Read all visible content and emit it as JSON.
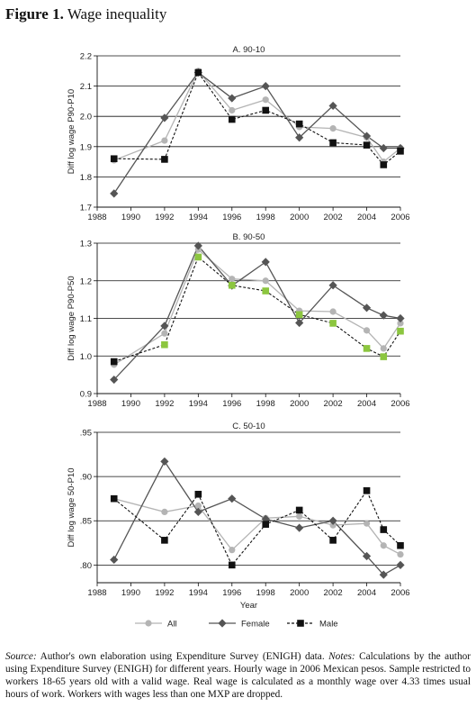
{
  "figure": {
    "label": "Figure 1.",
    "title": "Wage inequality",
    "xlabel": "Year",
    "source_label": "Source:",
    "source_text": " Author's own elaboration using Expenditure Survey (ENIGH) data. ",
    "notes_label": "Notes:",
    "notes_text": " Calculations by the author using Expenditure Survey (ENIGH) for different years. Hourly wage in 2006 Mexican pesos. Sample restricted to workers 18-65 years old with a valid wage. Real wage is calculated as a monthly wage over 4.33 times usual hours of work. Workers with wages less than one MXP are dropped."
  },
  "legend": [
    {
      "name": "All",
      "color": "#b4b4b4",
      "marker": "circle",
      "dash": false
    },
    {
      "name": "Female",
      "color": "#555555",
      "marker": "diamond",
      "dash": false
    },
    {
      "name": "Male",
      "color": "#111111",
      "marker": "square",
      "dash": true
    }
  ],
  "chart_data": [
    {
      "type": "line",
      "title": "A. 90-10",
      "ylabel": "Diff log wage P90-P10",
      "xlabel": "",
      "ylim": [
        1.7,
        2.2
      ],
      "yticks": [
        1.7,
        1.8,
        1.9,
        2.0,
        2.1,
        2.2
      ],
      "ytick_labels": [
        "1.7",
        "1.8",
        "1.9",
        "2.0",
        "2.1",
        "2.2"
      ],
      "xlim": [
        1988,
        2006
      ],
      "xticks": [
        1988,
        1990,
        1992,
        1994,
        1996,
        1998,
        2000,
        2002,
        2004,
        2006
      ],
      "x": [
        1989,
        1992,
        1994,
        1996,
        1998,
        2000,
        2002,
        2004,
        2005,
        2006
      ],
      "grid": "horizontal",
      "series": [
        {
          "name": "All",
          "values": [
            1.855,
            1.92,
            2.15,
            2.02,
            2.055,
            1.965,
            1.96,
            1.93,
            1.85,
            1.895
          ]
        },
        {
          "name": "Female",
          "values": [
            1.745,
            1.995,
            2.145,
            2.06,
            2.1,
            1.93,
            2.035,
            1.935,
            1.895,
            1.895
          ]
        },
        {
          "name": "Male",
          "values": [
            1.86,
            1.858,
            2.145,
            1.99,
            2.02,
            1.975,
            1.913,
            1.905,
            1.84,
            1.885
          ]
        }
      ]
    },
    {
      "type": "line",
      "title": "B. 90-50",
      "ylabel": "Diff log wage P90-P50",
      "xlabel": "",
      "ylim": [
        0.9,
        1.3
      ],
      "yticks": [
        0.9,
        1.0,
        1.1,
        1.2,
        1.3
      ],
      "ytick_labels": [
        "0.9",
        "1.0",
        "1.1",
        "1.2",
        "1.3"
      ],
      "xlim": [
        1988,
        2006
      ],
      "xticks": [
        1988,
        1990,
        1992,
        1994,
        1996,
        1998,
        2000,
        2002,
        2004,
        2006
      ],
      "x": [
        1989,
        1992,
        1994,
        1996,
        1998,
        2000,
        2002,
        2004,
        2005,
        2006
      ],
      "grid": "horizontal",
      "series": [
        {
          "name": "All",
          "values": [
            0.977,
            1.06,
            1.283,
            1.205,
            1.2,
            1.12,
            1.118,
            1.068,
            1.02,
            1.087
          ]
        },
        {
          "name": "Female",
          "values": [
            0.937,
            1.08,
            1.293,
            1.187,
            1.25,
            1.088,
            1.188,
            1.128,
            1.108,
            1.1
          ]
        },
        {
          "name": "Male",
          "values": [
            0.985,
            1.03,
            1.263,
            1.188,
            1.173,
            1.11,
            1.087,
            1.02,
            0.998,
            1.066
          ]
        }
      ]
    },
    {
      "type": "line",
      "title": "C. 50-10",
      "ylabel": "Diff log wage 50-P10",
      "xlabel": "Year",
      "ylim": [
        0.78,
        0.95
      ],
      "yticks": [
        0.8,
        0.85,
        0.9,
        0.95
      ],
      "ytick_labels": [
        ".80",
        ".85",
        ".90",
        ".95"
      ],
      "xlim": [
        1988,
        2006
      ],
      "xticks": [
        1988,
        1990,
        1992,
        1994,
        1996,
        1998,
        2000,
        2002,
        2004,
        2006
      ],
      "x": [
        1989,
        1992,
        1994,
        1996,
        1998,
        2000,
        2002,
        2004,
        2005,
        2006
      ],
      "grid": "horizontal",
      "series": [
        {
          "name": "All",
          "values": [
            0.875,
            0.86,
            0.867,
            0.817,
            0.853,
            0.855,
            0.845,
            0.847,
            0.822,
            0.812
          ]
        },
        {
          "name": "Female",
          "values": [
            0.806,
            0.917,
            0.86,
            0.875,
            0.852,
            0.842,
            0.85,
            0.81,
            0.789,
            0.8
          ]
        },
        {
          "name": "Male",
          "values": [
            0.875,
            0.828,
            0.88,
            0.8,
            0.846,
            0.862,
            0.828,
            0.884,
            0.84,
            0.822
          ]
        }
      ]
    }
  ]
}
